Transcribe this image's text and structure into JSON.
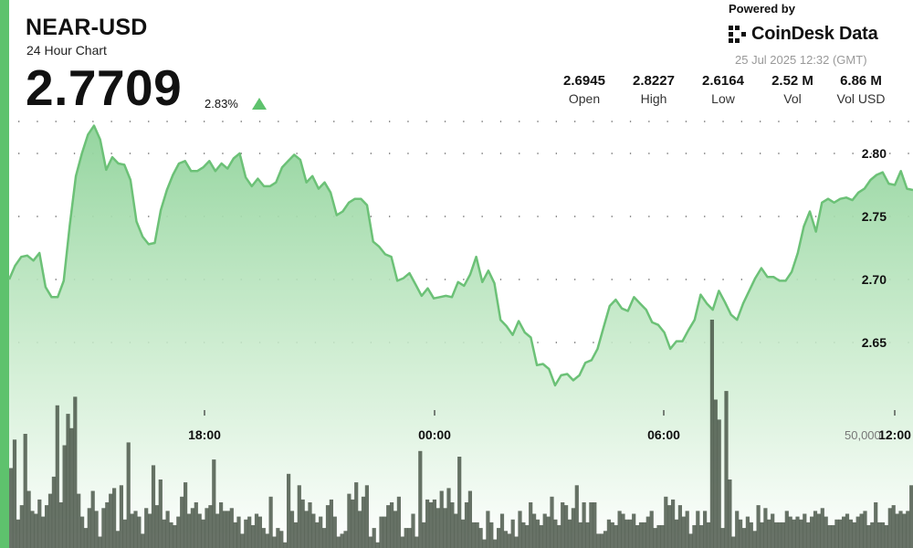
{
  "header": {
    "pair": "NEAR-USD",
    "subtitle": "24 Hour Chart",
    "price": "2.7709",
    "change": "2.83%",
    "powered_by": "Powered by",
    "brand": "CoinDesk Data",
    "timestamp": "25 Jul 2025 12:32 (GMT)"
  },
  "stats": [
    {
      "value": "2.6945",
      "label": "Open"
    },
    {
      "value": "2.8227",
      "label": "High"
    },
    {
      "value": "2.6164",
      "label": "Low"
    },
    {
      "value": "2.52 M",
      "label": "Vol"
    },
    {
      "value": "6.86 M",
      "label": "Vol USD"
    }
  ],
  "colors": {
    "accent": "#5ec26d",
    "line": "#6cc177",
    "area_top": "#9ed9a4",
    "volume_bar": "#3d4a3c"
  },
  "chart_data": {
    "type": "area",
    "title": "",
    "xlabel": "",
    "ylabel": "",
    "x_ticks": [
      "18:00",
      "00:00",
      "06:00",
      "12:00"
    ],
    "y_ticks": [
      2.65,
      2.7,
      2.75,
      2.8
    ],
    "y_tick_labels": [
      "2.65",
      "2.70",
      "2.75",
      "2.80"
    ],
    "ylim": [
      2.6,
      2.825
    ],
    "grid": true,
    "volume_label": "50,000",
    "price": [
      2.7,
      2.711,
      2.718,
      2.719,
      2.715,
      2.721,
      2.694,
      2.686,
      2.686,
      2.699,
      2.743,
      2.782,
      2.8,
      2.815,
      2.822,
      2.811,
      2.787,
      2.797,
      2.792,
      2.791,
      2.779,
      2.746,
      2.734,
      2.728,
      2.729,
      2.755,
      2.771,
      2.783,
      2.792,
      2.794,
      2.786,
      2.786,
      2.789,
      2.794,
      2.786,
      2.792,
      2.788,
      2.796,
      2.8,
      2.781,
      2.774,
      2.78,
      2.774,
      2.774,
      2.777,
      2.789,
      2.794,
      2.799,
      2.795,
      2.777,
      2.782,
      2.772,
      2.777,
      2.769,
      2.751,
      2.754,
      2.761,
      2.764,
      2.764,
      2.759,
      2.73,
      2.726,
      2.72,
      2.718,
      2.699,
      2.701,
      2.705,
      2.696,
      2.687,
      2.693,
      2.685,
      2.686,
      2.687,
      2.686,
      2.698,
      2.695,
      2.704,
      2.718,
      2.698,
      2.707,
      2.697,
      2.668,
      2.663,
      2.656,
      2.667,
      2.658,
      2.654,
      2.632,
      2.633,
      2.629,
      2.616,
      2.624,
      2.625,
      2.62,
      2.624,
      2.634,
      2.636,
      2.645,
      2.662,
      2.679,
      2.684,
      2.677,
      2.675,
      2.686,
      2.681,
      2.676,
      2.666,
      2.664,
      2.658,
      2.645,
      2.651,
      2.651,
      2.66,
      2.668,
      2.688,
      2.681,
      2.676,
      2.691,
      2.682,
      2.672,
      2.668,
      2.681,
      2.691,
      2.701,
      2.709,
      2.702,
      2.702,
      2.699,
      2.699,
      2.706,
      2.721,
      2.742,
      2.754,
      2.738,
      2.761,
      2.764,
      2.761,
      2.764,
      2.765,
      2.763,
      2.769,
      2.772,
      2.779,
      2.783,
      2.785,
      2.776,
      2.775,
      2.786,
      2.772,
      2.771
    ],
    "volume": [
      28000,
      38000,
      10000,
      15000,
      40000,
      20000,
      13000,
      12000,
      17000,
      11000,
      15000,
      19000,
      25000,
      50000,
      16000,
      36000,
      47000,
      42000,
      53000,
      19000,
      11000,
      7000,
      14000,
      20000,
      13000,
      4000,
      14000,
      16000,
      19000,
      21000,
      6000,
      22000,
      10000,
      37000,
      12000,
      13000,
      11000,
      5000,
      14000,
      12000,
      29000,
      15000,
      24000,
      10000,
      13000,
      9000,
      8000,
      11000,
      18000,
      23000,
      12000,
      14000,
      16000,
      12000,
      10000,
      14000,
      15000,
      31000,
      12000,
      16000,
      13000,
      13000,
      14000,
      9000,
      11000,
      5000,
      10000,
      11000,
      8000,
      12000,
      11000,
      7000,
      5000,
      18000,
      4000,
      7000,
      6000,
      2000,
      26000,
      13000,
      9000,
      22000,
      17000,
      13000,
      16000,
      12000,
      9000,
      11000,
      7000,
      15000,
      17000,
      11000,
      4000,
      5000,
      6000,
      19000,
      17000,
      23000,
      13000,
      18000,
      22000,
      4000,
      7000,
      2000,
      11000,
      11000,
      15000,
      16000,
      13000,
      18000,
      4000,
      7000,
      7000,
      12000,
      4000,
      34000,
      9000,
      17000,
      16000,
      17000,
      14000,
      20000,
      14000,
      21000,
      16000,
      12000,
      32000,
      10000,
      16000,
      20000,
      9000,
      9000,
      7000,
      3000,
      13000,
      9000,
      3000,
      7000,
      12000,
      6000,
      5000,
      10000,
      4000,
      13000,
      9000,
      8000,
      16000,
      12000,
      10000,
      8000,
      12000,
      11000,
      18000,
      10000,
      8000,
      16000,
      15000,
      10000,
      14000,
      22000,
      9000,
      16000,
      9000,
      16000,
      16000,
      5000,
      5000,
      6000,
      10000,
      9000,
      8000,
      13000,
      12000,
      10000,
      10000,
      12000,
      8000,
      9000,
      9000,
      11000,
      13000,
      7000,
      8000,
      8000,
      18000,
      15000,
      17000,
      10000,
      15000,
      11000,
      13000,
      5000,
      8000,
      13000,
      8000,
      13000,
      9000,
      80000,
      52000,
      45000,
      7000,
      55000,
      24000,
      4000,
      13000,
      10000,
      7000,
      11000,
      9000,
      6000,
      15000,
      9000,
      14000,
      10000,
      12000,
      9000,
      9000,
      9000,
      13000,
      11000,
      10000,
      11000,
      10000,
      12000,
      9000,
      11000,
      13000,
      12000,
      14000,
      11000,
      8000,
      8000,
      10000,
      10000,
      11000,
      12000,
      10000,
      9000,
      11000,
      12000,
      13000,
      8000,
      9000,
      16000,
      9000,
      9000,
      8000,
      14000,
      15000,
      12000,
      13000,
      12000,
      13000,
      22000
    ]
  }
}
